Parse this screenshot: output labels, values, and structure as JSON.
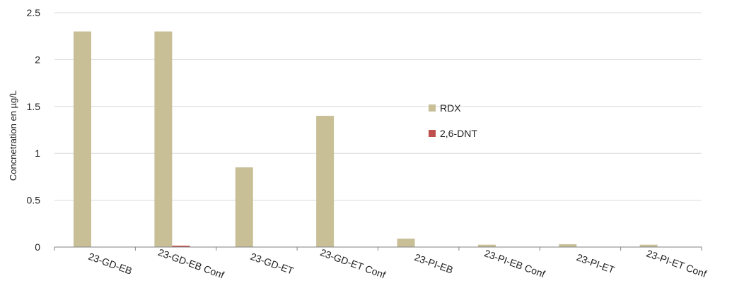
{
  "chart_data": {
    "type": "bar",
    "title": "",
    "xlabel": "",
    "ylabel": "Concnetration en µg/L",
    "ylim": [
      0,
      2.5
    ],
    "yticks": [
      "0",
      "0.5",
      "1",
      "1.5",
      "2",
      "2.5"
    ],
    "grid": true,
    "legend_position": "center-right",
    "categories": [
      "23-GD-EB",
      "23-GD-EB Conf",
      "23-GD-ET",
      "23-GD-ET Conf",
      "23-PI-EB",
      "23-PI-EB Conf",
      "23-PI-ET",
      "23-PI-ET Conf"
    ],
    "series": [
      {
        "name": "RDX",
        "color": "#c8bf97",
        "values": [
          2.3,
          2.3,
          0.85,
          1.4,
          0.09,
          0.025,
          0.03,
          0.025
        ]
      },
      {
        "name": "2,6-DNT",
        "color": "#c0504d",
        "values": [
          0,
          0.015,
          0,
          0,
          0,
          0,
          0,
          0
        ]
      }
    ]
  }
}
